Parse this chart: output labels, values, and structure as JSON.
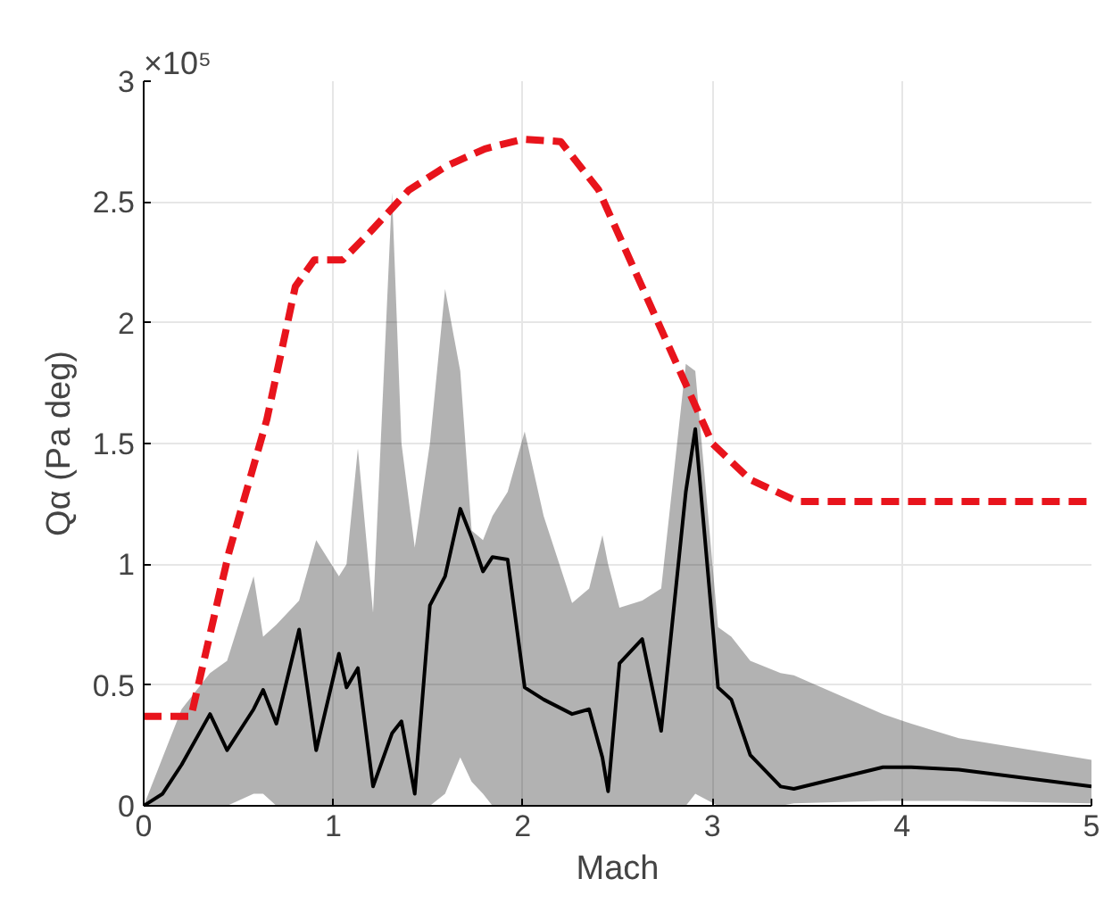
{
  "chart_data": {
    "type": "line",
    "xlabel": "Mach",
    "ylabel": "Qα (Pa deg)",
    "annotations": [
      "×10⁵"
    ],
    "xlim": [
      0,
      5
    ],
    "xticks": [
      0,
      1,
      2,
      3,
      4,
      5
    ],
    "ylim": [
      0,
      3
    ],
    "yticks": [
      0,
      0.5,
      1,
      1.5,
      2,
      2.5,
      3
    ],
    "grid": true,
    "series": [
      {
        "color": "#000000",
        "x": [
          0,
          0.1,
          0.2,
          0.35,
          0.44,
          0.58,
          0.63,
          0.7,
          0.82,
          0.91,
          1.03,
          1.07,
          1.13,
          1.21,
          1.31,
          1.36,
          1.43,
          1.51,
          1.59,
          1.67,
          1.73,
          1.79,
          1.84,
          1.92,
          2.01,
          2.11,
          2.26,
          2.35,
          2.42,
          2.45,
          2.51,
          2.63,
          2.73,
          2.86,
          2.91,
          3.03,
          3.1,
          3.2,
          3.36,
          3.43,
          3.9,
          4.05,
          4.3,
          5.0
        ],
        "values": [
          0,
          0.05,
          0.17,
          0.38,
          0.23,
          0.4,
          0.48,
          0.34,
          0.73,
          0.23,
          0.63,
          0.49,
          0.57,
          0.08,
          0.3,
          0.35,
          0.05,
          0.83,
          0.95,
          1.23,
          1.11,
          0.97,
          1.03,
          1.02,
          0.49,
          0.44,
          0.38,
          0.4,
          0.2,
          0.06,
          0.59,
          0.69,
          0.31,
          1.3,
          1.56,
          0.49,
          0.44,
          0.21,
          0.08,
          0.07,
          0.16,
          0.16,
          0.15,
          0.08
        ],
        "upper": [
          0,
          0.2,
          0.4,
          0.55,
          0.6,
          0.95,
          0.7,
          0.75,
          0.85,
          1.1,
          0.95,
          1.0,
          1.48,
          0.8,
          2.54,
          1.5,
          1.07,
          1.5,
          2.14,
          1.8,
          1.14,
          1.1,
          1.2,
          1.3,
          1.55,
          1.2,
          0.84,
          0.9,
          1.12,
          1.0,
          0.82,
          0.85,
          0.9,
          1.83,
          1.8,
          0.74,
          0.7,
          0.6,
          0.55,
          0.54,
          0.38,
          0.34,
          0.28,
          0.19
        ],
        "lower": [
          0,
          0,
          0,
          0,
          0,
          0.05,
          0.05,
          0,
          0,
          0,
          0,
          0,
          0,
          0,
          0,
          0,
          0,
          0,
          0.05,
          0.2,
          0.1,
          0.05,
          0,
          0,
          0,
          0,
          0,
          0,
          0,
          0,
          0,
          0,
          0,
          0,
          0.05,
          0,
          0,
          0,
          0,
          0.01,
          0.02,
          0.02,
          0.02,
          0.01
        ]
      },
      {
        "color": "#e8141c",
        "line_style": "dashed",
        "x": [
          0,
          0.25,
          0.45,
          0.65,
          0.8,
          0.9,
          1.05,
          1.2,
          1.4,
          1.6,
          1.8,
          2.0,
          2.2,
          2.4,
          2.6,
          2.8,
          3.0,
          3.2,
          3.45,
          5
        ],
        "values": [
          0.37,
          0.37,
          1.05,
          1.6,
          2.15,
          2.26,
          2.26,
          2.38,
          2.55,
          2.65,
          2.72,
          2.76,
          2.75,
          2.55,
          2.2,
          1.85,
          1.5,
          1.35,
          1.26,
          1.26
        ]
      }
    ]
  }
}
